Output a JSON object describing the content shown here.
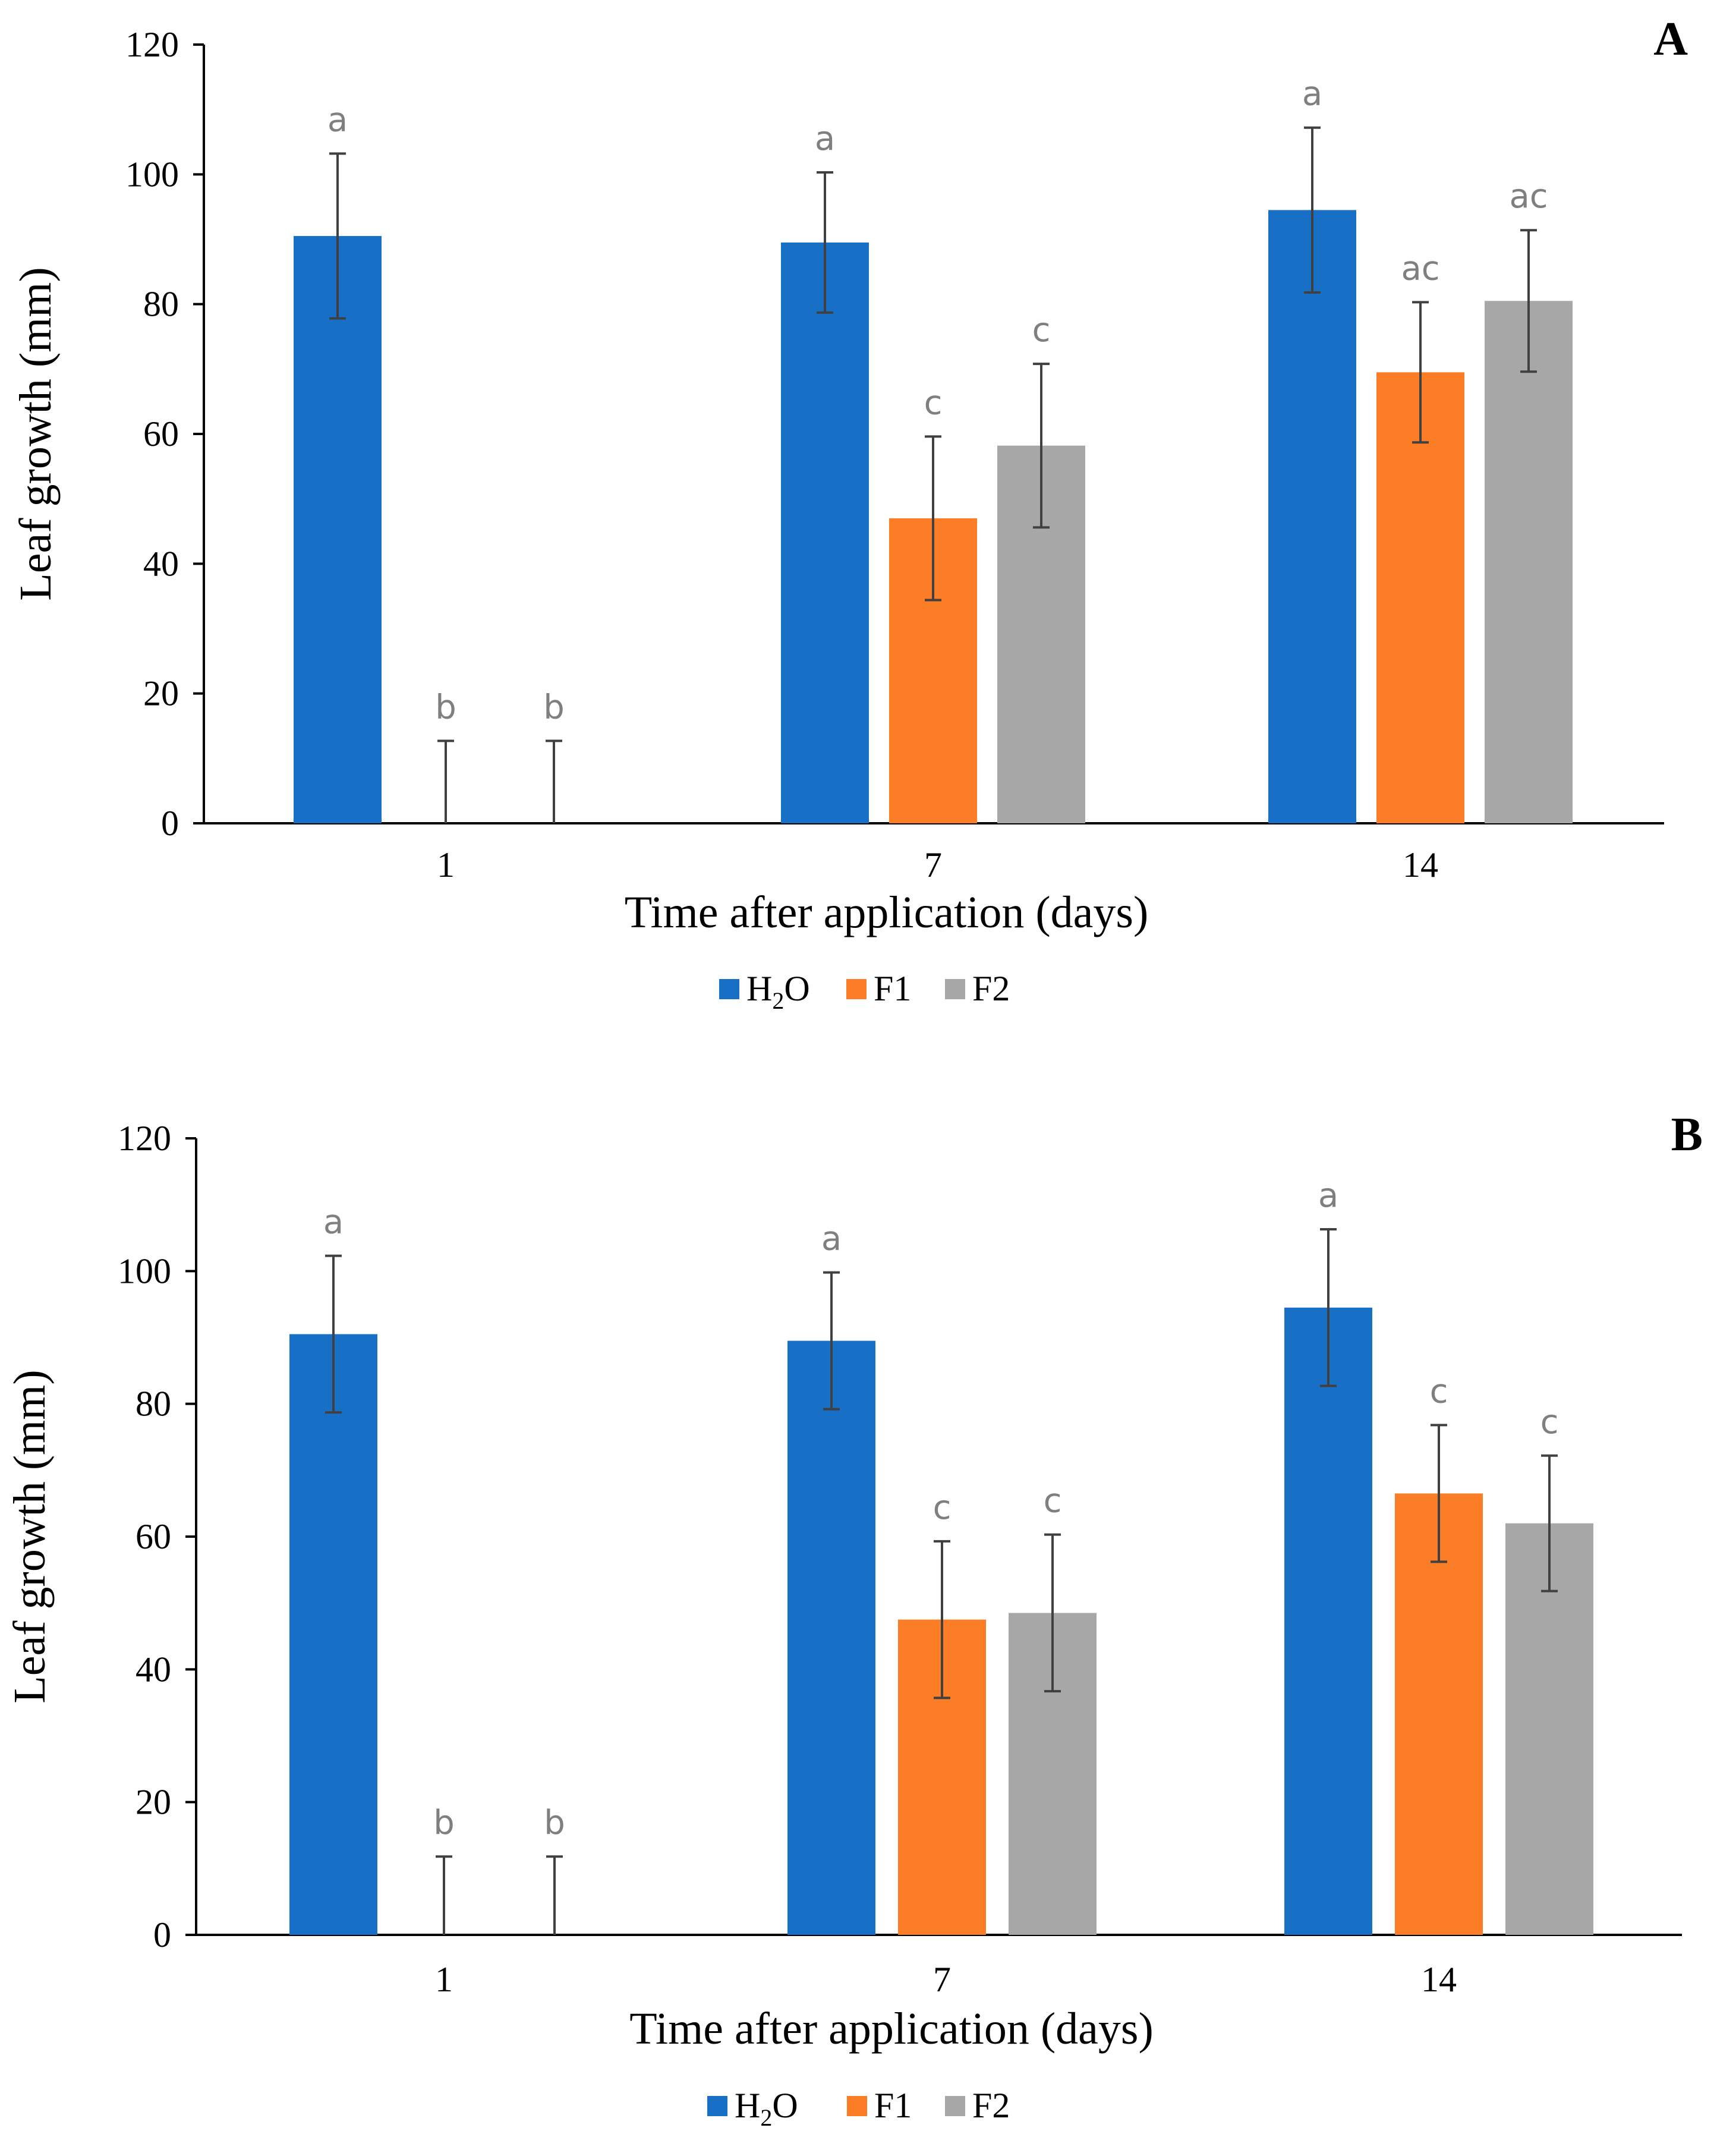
{
  "colors": {
    "h2o": "#1770C6",
    "f1": "#FB7D26",
    "f2": "#A7A7A7",
    "axis": "#000000",
    "errbar": "#404040",
    "sig": "#7F7F7F"
  },
  "legend_items": [
    {
      "key": "h2o",
      "base": "H",
      "sub": "2",
      "rest": "O"
    },
    {
      "key": "f1",
      "base": "F1",
      "sub": "",
      "rest": ""
    },
    {
      "key": "f2",
      "base": "F2",
      "sub": "",
      "rest": ""
    }
  ],
  "chart_data": [
    {
      "type": "bar",
      "panel_label": "A",
      "xlabel": "Time after application (days)",
      "ylabel": "Leaf growth (mm)",
      "ylim": [
        0,
        120
      ],
      "yticks": [
        "0",
        "20",
        "40",
        "60",
        "80",
        "100",
        "120"
      ],
      "categories": [
        "1",
        "7",
        "14"
      ],
      "legend": [
        "H2O",
        "F1",
        "F2"
      ],
      "series": [
        {
          "name": "H2O",
          "key": "h2o",
          "values": [
            90.5,
            89.5,
            94.5
          ],
          "errors": [
            12.7,
            10.8,
            12.7
          ],
          "letters": [
            "a",
            "a",
            "a"
          ]
        },
        {
          "name": "F1",
          "key": "f1",
          "values": [
            0,
            47,
            69.5
          ],
          "errors": [
            12.7,
            12.6,
            10.8
          ],
          "letters": [
            "b",
            "c",
            "ac"
          ]
        },
        {
          "name": "F2",
          "key": "f2",
          "values": [
            0,
            58.2,
            80.5
          ],
          "errors": [
            12.7,
            12.6,
            10.9
          ],
          "letters": [
            "b",
            "c",
            "ac"
          ]
        }
      ]
    },
    {
      "type": "bar",
      "panel_label": "B",
      "xlabel": "Time after application (days)",
      "ylabel": "Leaf growth (mm)",
      "ylim": [
        0,
        120
      ],
      "yticks": [
        "0",
        "20",
        "40",
        "60",
        "80",
        "100",
        "120"
      ],
      "categories": [
        "1",
        "7",
        "14"
      ],
      "legend": [
        "H2O",
        "F1",
        "F2"
      ],
      "series": [
        {
          "name": "H2O",
          "key": "h2o",
          "values": [
            90.5,
            89.5,
            94.5
          ],
          "errors": [
            11.8,
            10.3,
            11.8
          ],
          "letters": [
            "a",
            "a",
            "a"
          ]
        },
        {
          "name": "F1",
          "key": "f1",
          "values": [
            0,
            47.5,
            66.5
          ],
          "errors": [
            11.8,
            11.8,
            10.3
          ],
          "letters": [
            "b",
            "c",
            "c"
          ]
        },
        {
          "name": "F2",
          "key": "f2",
          "values": [
            0,
            48.5,
            62
          ],
          "errors": [
            11.8,
            11.8,
            10.2
          ],
          "letters": [
            "b",
            "c",
            "c"
          ]
        }
      ]
    }
  ]
}
